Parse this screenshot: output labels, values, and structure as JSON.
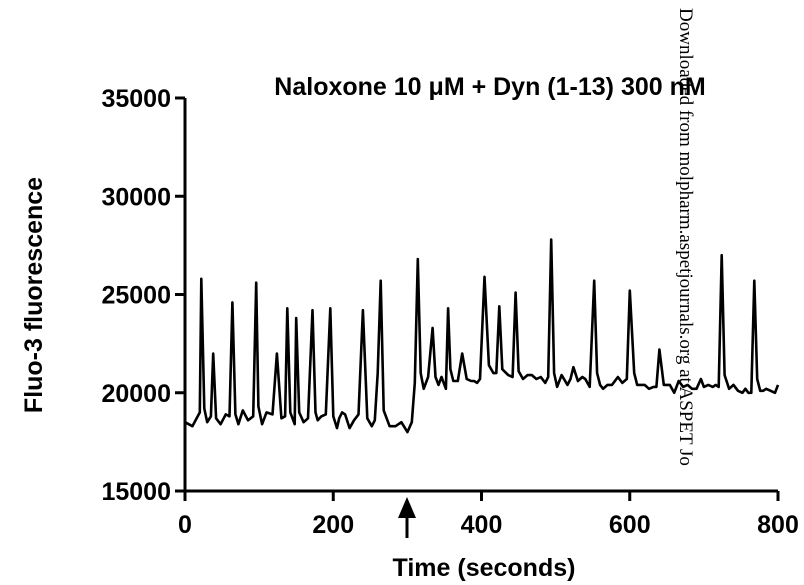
{
  "chart_data": {
    "type": "line",
    "title": "Naloxone 10 μM + Dyn (1-13) 300 nM",
    "xlabel": "Time (seconds)",
    "ylabel": "Fluo-3 fluorescence",
    "xlim": [
      0,
      800
    ],
    "ylim": [
      15000,
      35000
    ],
    "x_ticks": [
      "0",
      "200",
      "400",
      "600",
      "800"
    ],
    "y_ticks": [
      "15000",
      "20000",
      "25000",
      "30000",
      "35000"
    ],
    "grid": false,
    "legend": "none",
    "annotations": [
      {
        "type": "arrow",
        "x": 300,
        "direction": "up"
      }
    ],
    "series": [
      {
        "color": "#000000",
        "x": [
          0,
          10,
          20,
          22,
          26,
          30,
          35,
          38,
          42,
          48,
          55,
          60,
          64,
          68,
          72,
          78,
          85,
          92,
          96,
          99,
          104,
          110,
          118,
          124,
          130,
          135,
          138,
          142,
          148,
          150,
          154,
          160,
          166,
          172,
          176,
          179,
          184,
          190,
          196,
          200,
          205,
          208,
          212,
          216,
          222,
          228,
          234,
          240,
          246,
          252,
          256,
          260,
          264,
          268,
          276,
          284,
          292,
          300,
          306,
          310,
          314,
          318,
          322,
          328,
          334,
          338,
          342,
          346,
          352,
          355,
          358,
          362,
          368,
          374,
          380,
          386,
          390,
          394,
          398,
          404,
          410,
          416,
          420,
          424,
          428,
          436,
          442,
          446,
          450,
          456,
          462,
          468,
          474,
          480,
          486,
          490,
          494,
          498,
          502,
          508,
          516,
          520,
          524,
          530,
          536,
          540,
          546,
          552,
          556,
          560,
          564,
          570,
          576,
          584,
          590,
          596,
          600,
          606,
          610,
          614,
          620,
          626,
          632,
          636,
          640,
          646,
          650,
          654,
          660,
          666,
          672,
          678,
          684,
          690,
          696,
          700,
          706,
          712,
          716,
          720,
          724,
          728,
          734,
          740,
          746,
          752,
          756,
          760,
          764,
          768,
          772,
          776,
          780,
          784,
          790,
          796,
          800
        ],
        "y": [
          18500,
          18300,
          19000,
          25800,
          19200,
          18500,
          18800,
          22000,
          18700,
          18400,
          18900,
          18800,
          24600,
          18900,
          18400,
          19100,
          18600,
          18800,
          25600,
          19300,
          18400,
          19000,
          18900,
          22000,
          18700,
          18800,
          24300,
          19000,
          18400,
          23800,
          19000,
          18500,
          18700,
          24200,
          19000,
          18600,
          18800,
          18900,
          24300,
          18800,
          18200,
          18700,
          19000,
          18900,
          18200,
          18600,
          18900,
          24200,
          18700,
          18300,
          18600,
          21000,
          25700,
          19100,
          18300,
          18300,
          18500,
          18000,
          18500,
          20500,
          26800,
          21000,
          20200,
          20800,
          23300,
          20800,
          20400,
          20800,
          20200,
          24300,
          21200,
          20600,
          20600,
          22000,
          20700,
          20600,
          20600,
          20500,
          20700,
          25900,
          21400,
          21000,
          21000,
          24400,
          21200,
          20900,
          20800,
          25100,
          21100,
          20700,
          20900,
          20900,
          20700,
          20800,
          20500,
          20800,
          27800,
          21000,
          20300,
          20900,
          20400,
          20700,
          21300,
          20600,
          20800,
          20700,
          20300,
          25700,
          21000,
          20400,
          20200,
          20400,
          20400,
          20800,
          20500,
          20700,
          25200,
          21000,
          20400,
          20400,
          20400,
          20200,
          20300,
          20300,
          22200,
          20400,
          20400,
          20400,
          20000,
          20600,
          20300,
          20400,
          20200,
          20200,
          20700,
          20300,
          20400,
          20300,
          20400,
          20300,
          27000,
          20900,
          20200,
          20400,
          20100,
          20000,
          20200,
          20000,
          20000,
          25700,
          20700,
          20100,
          20100,
          20200,
          20100,
          20000,
          20400
        ]
      }
    ]
  },
  "watermark": {
    "text": "Downloaded from molpharm.aspetjournals.org at ASPET Jo"
  }
}
